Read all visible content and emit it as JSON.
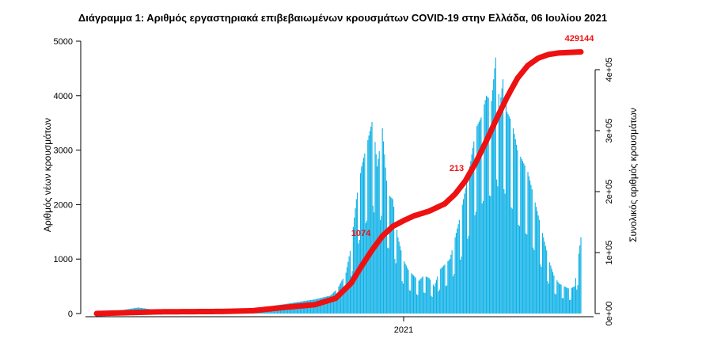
{
  "chart_data": {
    "type": "bar",
    "title": "Διάγραμμα 1: Αριθμός εργαστηριακά επιβεβαιωμένων κρουσμάτων COVID-19 στην Ελλάδα, 06 Ιουλίου 2021",
    "ylabel": "Αριθμός νέων κρουσμάτων",
    "y2label": "Συνολικός αριθμός κρουσμάτων",
    "xtick_label": "2021",
    "ylim": [
      0,
      5000
    ],
    "y2lim": [
      0,
      400000
    ],
    "yticks": [
      0,
      1000,
      2000,
      3000,
      4000,
      5000
    ],
    "y2ticks": [
      "0e+00",
      "1e+05",
      "2e+05",
      "3e+05",
      "4e+05"
    ],
    "bar_color": "#0cb0e6",
    "line_color": "#ee1111",
    "grid": false,
    "annotations": [
      "429144",
      "1074",
      "213"
    ],
    "x_range": [
      "2020-02-26",
      "2021-07-06"
    ],
    "series": [
      {
        "kind": "bars",
        "x_start": "2020-02-26",
        "x_end": "2021-07-06",
        "anchors": [
          [
            0,
            5
          ],
          [
            20,
            50
          ],
          [
            40,
            110
          ],
          [
            60,
            60
          ],
          [
            90,
            20
          ],
          [
            120,
            25
          ],
          [
            150,
            55
          ],
          [
            170,
            140
          ],
          [
            190,
            200
          ],
          [
            210,
            260
          ],
          [
            225,
            330
          ],
          [
            232,
            460
          ],
          [
            240,
            750
          ],
          [
            245,
            1250
          ],
          [
            250,
            2100
          ],
          [
            255,
            2700
          ],
          [
            260,
            3100
          ],
          [
            266,
            3600
          ],
          [
            270,
            2700
          ],
          [
            275,
            3400
          ],
          [
            280,
            2200
          ],
          [
            285,
            2100
          ],
          [
            290,
            1400
          ],
          [
            295,
            1000
          ],
          [
            300,
            800
          ],
          [
            305,
            700
          ],
          [
            310,
            600
          ],
          [
            315,
            700
          ],
          [
            320,
            650
          ],
          [
            325,
            500
          ],
          [
            330,
            800
          ],
          [
            335,
            900
          ],
          [
            340,
            1000
          ],
          [
            345,
            1400
          ],
          [
            350,
            1800
          ],
          [
            355,
            2300
          ],
          [
            360,
            2800
          ],
          [
            365,
            3400
          ],
          [
            370,
            3600
          ],
          [
            375,
            4000
          ],
          [
            380,
            3900
          ],
          [
            384,
            4700
          ],
          [
            388,
            3800
          ],
          [
            391,
            4300
          ],
          [
            395,
            3700
          ],
          [
            400,
            3500
          ],
          [
            405,
            3000
          ],
          [
            410,
            2800
          ],
          [
            415,
            2600
          ],
          [
            420,
            2200
          ],
          [
            425,
            1800
          ],
          [
            430,
            1400
          ],
          [
            435,
            1000
          ],
          [
            440,
            700
          ],
          [
            445,
            550
          ],
          [
            450,
            500
          ],
          [
            455,
            450
          ],
          [
            460,
            500
          ],
          [
            466,
            1400
          ]
        ]
      },
      {
        "kind": "line",
        "name": "",
        "anchors": [
          [
            0,
            0
          ],
          [
            60,
            2800
          ],
          [
            120,
            3400
          ],
          [
            150,
            4600
          ],
          [
            180,
            10000
          ],
          [
            210,
            14500
          ],
          [
            230,
            25000
          ],
          [
            245,
            50000
          ],
          [
            255,
            78000
          ],
          [
            265,
            104000
          ],
          [
            275,
            127000
          ],
          [
            285,
            143000
          ],
          [
            295,
            152000
          ],
          [
            305,
            160000
          ],
          [
            320,
            168000
          ],
          [
            335,
            180000
          ],
          [
            345,
            196000
          ],
          [
            355,
            218000
          ],
          [
            365,
            248000
          ],
          [
            375,
            283000
          ],
          [
            385,
            320000
          ],
          [
            395,
            355000
          ],
          [
            405,
            386000
          ],
          [
            415,
            407000
          ],
          [
            425,
            419000
          ],
          [
            435,
            425000
          ],
          [
            445,
            427500
          ],
          [
            466,
            429144
          ]
        ]
      }
    ]
  }
}
